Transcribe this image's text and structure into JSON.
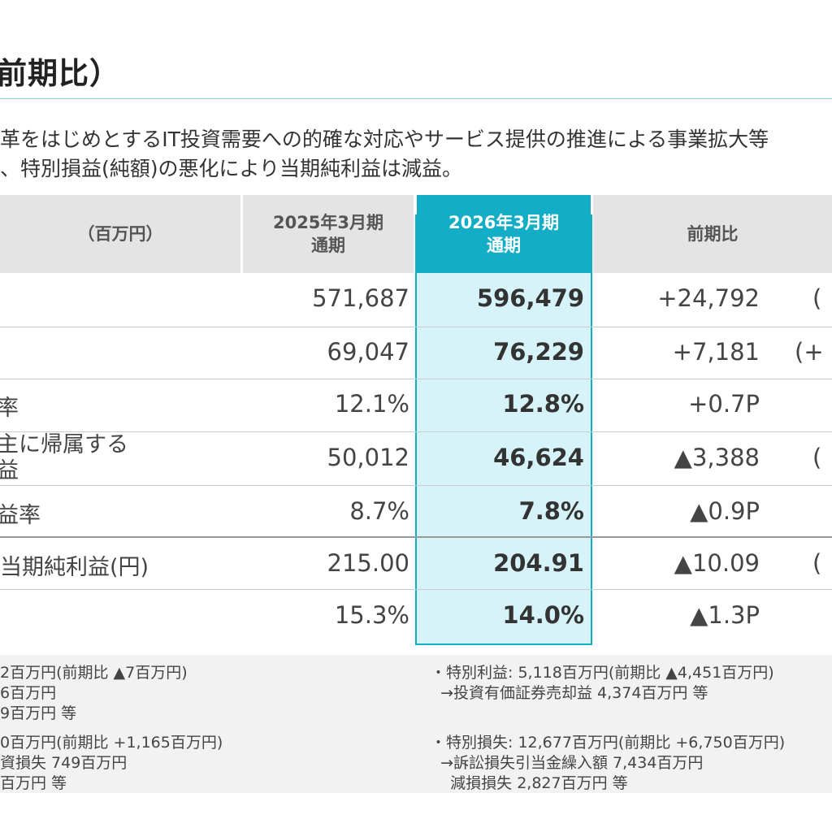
{
  "title": "前期比）",
  "description": [
    "革をはじめとするIT投資需要への的確な対応やサービス提供の推進による事業拡大等",
    "、特別損益(純額)の悪化により当期純利益は減益。"
  ],
  "table": {
    "headers": {
      "label": "（百万円）",
      "prev_line1": "2025年3月期",
      "prev_line2": "通期",
      "curr_line1": "2026年3月期",
      "curr_line2": "通期",
      "diff": "前期比"
    },
    "rows": [
      {
        "label": "",
        "prev": "571,687",
        "curr": "596,479",
        "diff": "+24,792",
        "extra": "("
      },
      {
        "label": "",
        "prev": "69,047",
        "curr": "76,229",
        "diff": "+7,181",
        "extra": "(+"
      },
      {
        "label": "率",
        "prev": "12.1%",
        "curr": "12.8%",
        "diff": "+0.7P",
        "extra": ""
      },
      {
        "label": "主に帰属する",
        "label2": "益",
        "prev": "50,012",
        "curr": "46,624",
        "diff": "▲3,388",
        "extra": "("
      },
      {
        "label": "益率",
        "prev": "8.7%",
        "curr": "7.8%",
        "diff": "▲0.9P",
        "extra": ""
      },
      {
        "label": "当期純利益(円)",
        "prev": "215.00",
        "curr": "204.91",
        "diff": "▲10.09",
        "extra": "("
      },
      {
        "label": "",
        "prev": "15.3%",
        "curr": "14.0%",
        "diff": "▲1.3P",
        "extra": ""
      }
    ]
  },
  "notes": {
    "left_block1": [
      "2百万円(前期比 ▲7百万円)",
      "6百万円",
      "9百万円 等"
    ],
    "left_block2": [
      "0百万円(前期比 +1,165百万円)",
      "資損失 749百万円",
      "百万円 等"
    ],
    "right_block1": [
      "・特別利益: 5,118百万円(前期比 ▲4,451百万円)",
      "  →投資有価証券売却益 4,374百万円 等"
    ],
    "right_block2": [
      "・特別損失: 12,677百万円(前期比 +6,750百万円)",
      "  →訴訟損失引当金繰入額 7,434百万円",
      "    減損損失 2,827百万円 等"
    ]
  },
  "colors": {
    "accent": "#13adc6",
    "accent_light": "#d5f3f8",
    "header_gray": "#e4e4e4",
    "notes_bg": "#f2f2f2"
  }
}
